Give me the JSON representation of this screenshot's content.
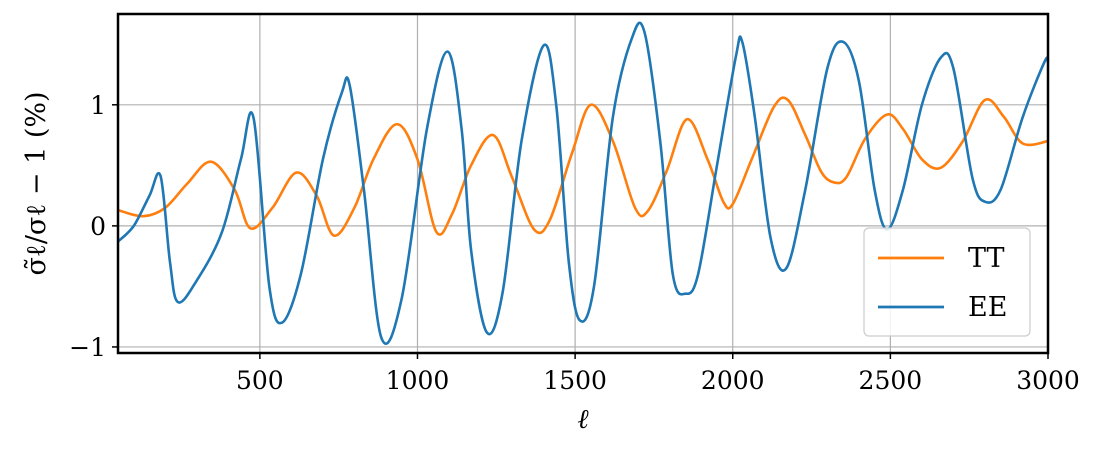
{
  "chart_data": {
    "type": "line",
    "xlabel": "ℓ",
    "ylabel": "σ̃ℓ/σℓ − 1 (%)",
    "xlim": [
      50,
      3000
    ],
    "ylim": [
      -1.05,
      1.75
    ],
    "xticks": [
      500,
      1000,
      1500,
      2000,
      2500,
      3000
    ],
    "xtick_labels": [
      "500",
      "1000",
      "1500",
      "2000",
      "2500",
      "3000"
    ],
    "yticks": [
      -1,
      0,
      1
    ],
    "ytick_labels": [
      "−1",
      "0",
      "1"
    ],
    "grid": true,
    "legend_position": "bottom-right",
    "series": [
      {
        "name": "TT",
        "color": "#ff7f0e",
        "x": [
          50,
          130,
          200,
          270,
          345,
          420,
          470,
          540,
          615,
          680,
          735,
          800,
          860,
          935,
          1000,
          1060,
          1110,
          1170,
          1240,
          1300,
          1370,
          1420,
          1490,
          1550,
          1620,
          1690,
          1730,
          1790,
          1855,
          1920,
          1970,
          2000,
          2060,
          2130,
          2175,
          2230,
          2280,
          2320,
          2360,
          2420,
          2490,
          2540,
          2600,
          2660,
          2730,
          2800,
          2860,
          2920,
          3000
        ],
        "y": [
          0.13,
          0.08,
          0.15,
          0.35,
          0.53,
          0.3,
          -0.02,
          0.15,
          0.44,
          0.25,
          -0.08,
          0.15,
          0.55,
          0.84,
          0.55,
          -0.05,
          0.1,
          0.5,
          0.75,
          0.4,
          -0.03,
          0.05,
          0.6,
          1.0,
          0.7,
          0.15,
          0.12,
          0.45,
          0.88,
          0.55,
          0.2,
          0.18,
          0.55,
          0.98,
          1.04,
          0.75,
          0.45,
          0.36,
          0.4,
          0.72,
          0.92,
          0.8,
          0.55,
          0.48,
          0.7,
          1.04,
          0.9,
          0.68,
          0.7
        ]
      },
      {
        "name": "EE",
        "color": "#1f77b4",
        "x": [
          50,
          100,
          150,
          185,
          215,
          240,
          300,
          380,
          440,
          480,
          530,
          570,
          630,
          700,
          760,
          785,
          830,
          885,
          950,
          1030,
          1095,
          1140,
          1170,
          1220,
          1270,
          1330,
          1400,
          1440,
          1480,
          1515,
          1560,
          1620,
          1680,
          1720,
          1770,
          1810,
          1850,
          1890,
          1950,
          2010,
          2030,
          2070,
          2120,
          2170,
          2230,
          2300,
          2350,
          2400,
          2450,
          2490,
          2540,
          2600,
          2660,
          2700,
          2760,
          2800,
          2850,
          2920,
          2990,
          3000
        ],
        "y": [
          -0.13,
          0.0,
          0.25,
          0.41,
          -0.3,
          -0.63,
          -0.45,
          -0.05,
          0.55,
          0.89,
          -0.5,
          -0.8,
          -0.4,
          0.55,
          1.1,
          1.16,
          0.3,
          -0.92,
          -0.6,
          0.8,
          1.44,
          0.8,
          -0.2,
          -0.88,
          -0.55,
          0.7,
          1.49,
          1.0,
          -0.3,
          -0.78,
          -0.5,
          0.9,
          1.55,
          1.6,
          0.7,
          -0.4,
          -0.56,
          -0.4,
          0.5,
          1.4,
          1.52,
          0.9,
          -0.1,
          -0.35,
          0.3,
          1.3,
          1.52,
          1.2,
          0.3,
          -0.03,
          0.3,
          1.0,
          1.39,
          1.3,
          0.4,
          0.2,
          0.3,
          0.9,
          1.36,
          1.35
        ]
      }
    ]
  }
}
